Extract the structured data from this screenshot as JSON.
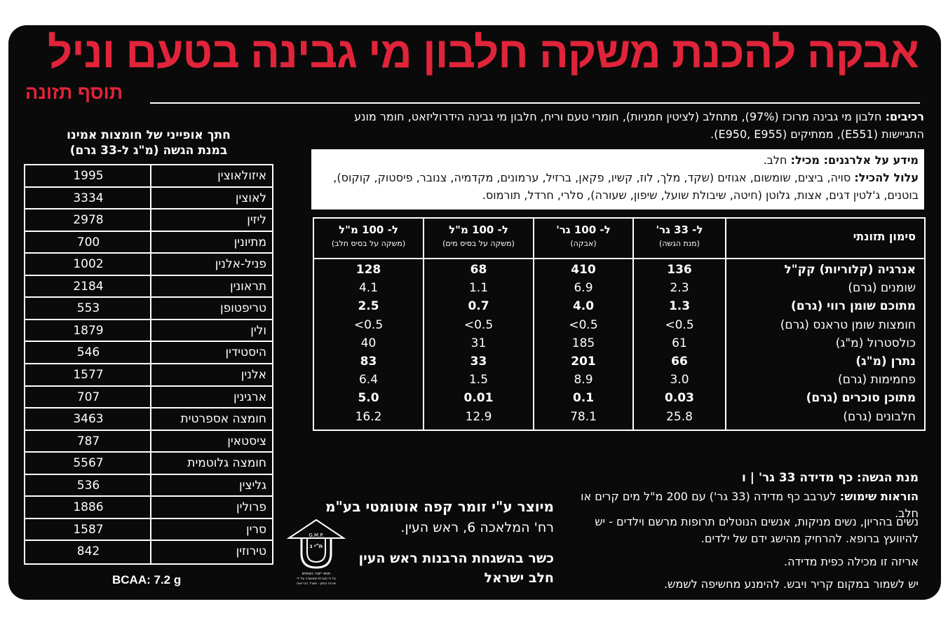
{
  "header": {
    "title": "אבקה להכנת משקה חלבון מי גבינה בטעם וניל",
    "subtitle": "תוסף תזונה"
  },
  "colors": {
    "accent": "#e0243a",
    "panel": "#0a0a0a",
    "text": "#ffffff"
  },
  "ingredients": {
    "label": "רכיבים:",
    "text": "חלבון מי גבינה מרוכז (97%), מתחלב (לציטין חמניות), חומרי טעם וריח, חלבון מי גבינה הידרוליזאט, חומר מונע התגיישות (E551), ממתיקים (E950, E955)."
  },
  "allergens": {
    "contains_label": "מידע על אלרגנים: מכיל:",
    "contains_value": "חלב.",
    "may_contain_label": "עלול להכיל:",
    "may_contain_value": "סויה, ביצים, שומשום, אגוזים (שקד, מלך, לוז, קשיו, פקאן, ברזיל, ערמונים, מקדמיה, צנובר, פיסטוק, קוקוס), בוטנים, ג'לטין דגים, אצות, גלוטן (חיטה, שיבולת שועל, שיפון, שעורה), סלרי, חרדל, תורמוס."
  },
  "nutrition": {
    "label_header": "סימון תזונתי",
    "columns": [
      {
        "title": "ל- 33 גר'",
        "sub": "(מנת הגשה)"
      },
      {
        "title": "ל- 100 גר'",
        "sub": "(אבקה)"
      },
      {
        "title": "ל- 100 מ\"ל",
        "sub": "(משקה על בסיס מים)"
      },
      {
        "title": "ל- 100 מ\"ל",
        "sub": "(משקה על בסיס חלב)"
      }
    ],
    "rows": [
      {
        "label": "אנרגיה (קלוריות) קק\"ל",
        "bold": true,
        "values": [
          "136",
          "410",
          "68",
          "128"
        ]
      },
      {
        "label": "שומנים (גרם)",
        "bold": false,
        "values": [
          "2.3",
          "6.9",
          "1.1",
          "4.1"
        ]
      },
      {
        "label": "מתוכם שומן רווי (גרם)",
        "bold": true,
        "values": [
          "1.3",
          "4.0",
          "0.7",
          "2.5"
        ]
      },
      {
        "label": "חומצות שומן טראנס (גרם)",
        "bold": false,
        "values": [
          "<0.5",
          "<0.5",
          "<0.5",
          "<0.5"
        ]
      },
      {
        "label": "כולסטרול (מ\"ג)",
        "bold": false,
        "values": [
          "61",
          "185",
          "31",
          "40"
        ]
      },
      {
        "label": "נתרן (מ\"ג)",
        "bold": true,
        "values": [
          "66",
          "201",
          "33",
          "83"
        ]
      },
      {
        "label": "פחמימות (גרם)",
        "bold": false,
        "values": [
          "3.0",
          "8.9",
          "1.5",
          "6.4"
        ]
      },
      {
        "label": "מתוכן סוכרים (גרם)",
        "bold": true,
        "values": [
          "0.03",
          "0.1",
          "0.01",
          "5.0"
        ]
      },
      {
        "label": "חלבונים (גרם)",
        "bold": false,
        "values": [
          "25.8",
          "78.1",
          "12.9",
          "16.2"
        ]
      }
    ]
  },
  "amino": {
    "title_line1": "חתך אופייני של חומצות אמינו",
    "title_line2": "במנת הגשה (מ\"ג ל-33 גרם)",
    "rows": [
      {
        "name": "איזולאוצין",
        "value": "1995"
      },
      {
        "name": "לאוצין",
        "value": "3334"
      },
      {
        "name": "ליזין",
        "value": "2978"
      },
      {
        "name": "מתיונין",
        "value": "700"
      },
      {
        "name": "פניל-אלנין",
        "value": "1002"
      },
      {
        "name": "תראונין",
        "value": "2184"
      },
      {
        "name": "טריפטופן",
        "value": "553"
      },
      {
        "name": "ולין",
        "value": "1879"
      },
      {
        "name": "היסטידין",
        "value": "546"
      },
      {
        "name": "אלנין",
        "value": "1577"
      },
      {
        "name": "ארגינין",
        "value": "707"
      },
      {
        "name": "חומצה אספרטית",
        "value": "3463"
      },
      {
        "name": "ציסטאין",
        "value": "787"
      },
      {
        "name": "חומצה גלוטמית",
        "value": "5567"
      },
      {
        "name": "גליצין",
        "value": "536"
      },
      {
        "name": "פרולין",
        "value": "1886"
      },
      {
        "name": "סרין",
        "value": "1587"
      },
      {
        "name": "טירוזין",
        "value": "842"
      }
    ],
    "bcaa": "BCAA: 7.2 g"
  },
  "manufacturer": {
    "line1": "מיוצר ע\"י זומר קפה אוטומטי בע\"מ",
    "line2": "רח' המלאכה 6, ראש העין.",
    "line3": "כשר בהשגחת הרבנות ראש העין",
    "line4": "חלב ישראל"
  },
  "gmp": {
    "top": "G.M.P.",
    "mid": "ת\"י ג",
    "caption1": "תנאי ייצור נאותים",
    "caption2": "על פי מערכת שאושרה על ידי",
    "caption3": "שירות המזון - משרד הבריאות"
  },
  "usage": {
    "serving_label": "מנת הגשה:",
    "serving_value": "כף מדידה 33 גר' | ו",
    "directions_label": "הוראות שימוש:",
    "directions_value": "לערבב כף מדידה (33 גר') עם 200 מ\"ל מים קרים או חלב.",
    "warning": "נשים בהריון, נשים מניקות, אנשים הנוטלים תרופות מרשם וילדים - יש להיוועץ ברופא. להרחיק מהישג ידם של ילדים.",
    "package": "אריזה זו מכילה כפית מדידה.",
    "storage": "יש לשמור במקום קריר ויבש. להימנע מחשיפה לשמש."
  }
}
